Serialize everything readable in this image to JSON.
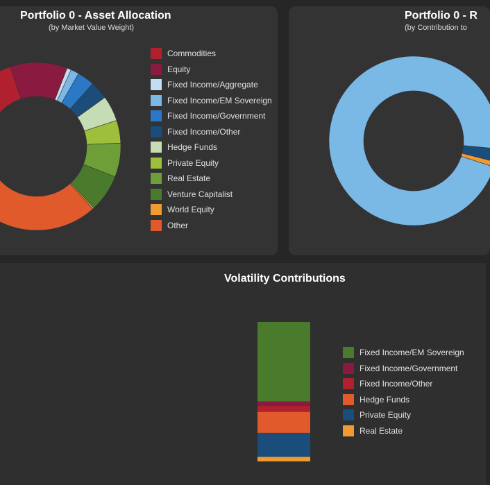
{
  "asset_allocation": {
    "title": "Portfolio 0 - Asset Allocation",
    "subtitle": "(by Market Value Weight)"
  },
  "risk_contribution": {
    "title": "Portfolio 0 - R",
    "subtitle": "(by Contribution to"
  },
  "volatility": {
    "title": "Volatility Contributions"
  },
  "chart_data": [
    {
      "type": "pie",
      "variant": "donut",
      "title": "Portfolio 0 - Asset Allocation",
      "subtitle": "(by Market Value Weight)",
      "legend_position": "right",
      "categories": [
        "Commodities",
        "Equity",
        "Fixed Income/Aggregate",
        "Fixed Income/EM Sovereign",
        "Fixed Income/Government",
        "Fixed Income/Other",
        "Hedge Funds",
        "Private Equity",
        "Real Estate",
        "Venture Capitalist",
        "World Equity",
        "Other"
      ],
      "colors": [
        "#b0202e",
        "#8a1a3f",
        "#c4ddf0",
        "#7ab8e6",
        "#2a78c6",
        "#1a4d7a",
        "#c6dcb5",
        "#9dbf3c",
        "#6e9e38",
        "#4a7a2c",
        "#f09a30",
        "#e05a2b"
      ],
      "values": [
        11,
        11,
        0.8,
        1.6,
        3.3,
        3.5,
        4.9,
        4.4,
        6.5,
        7.2,
        0.3,
        45.5
      ]
    },
    {
      "type": "pie",
      "variant": "donut",
      "title": "Portfolio 0 - R",
      "subtitle": "(by Contribution to",
      "colors": [
        "#7ab8e6",
        "#1a4d7a",
        "#f09a30"
      ],
      "values": [
        96.5,
        2.5,
        1.0
      ]
    },
    {
      "type": "bar",
      "variant": "stacked",
      "title": "Volatility Contributions",
      "legend_position": "right",
      "series": [
        {
          "name": "Fixed Income/EM Sovereign",
          "color": "#4a7a2c",
          "value": 53
        },
        {
          "name": "Fixed Income/Government",
          "color": "#8a1a3f",
          "value": 3
        },
        {
          "name": "Fixed Income/Other",
          "color": "#b0202e",
          "value": 4
        },
        {
          "name": "Hedge Funds",
          "color": "#e05a2b",
          "value": 14
        },
        {
          "name": "Private Equity",
          "color": "#1a4d7a",
          "value": 16
        },
        {
          "name": "Real Estate",
          "color": "#f09a30",
          "value": 3
        }
      ]
    }
  ]
}
